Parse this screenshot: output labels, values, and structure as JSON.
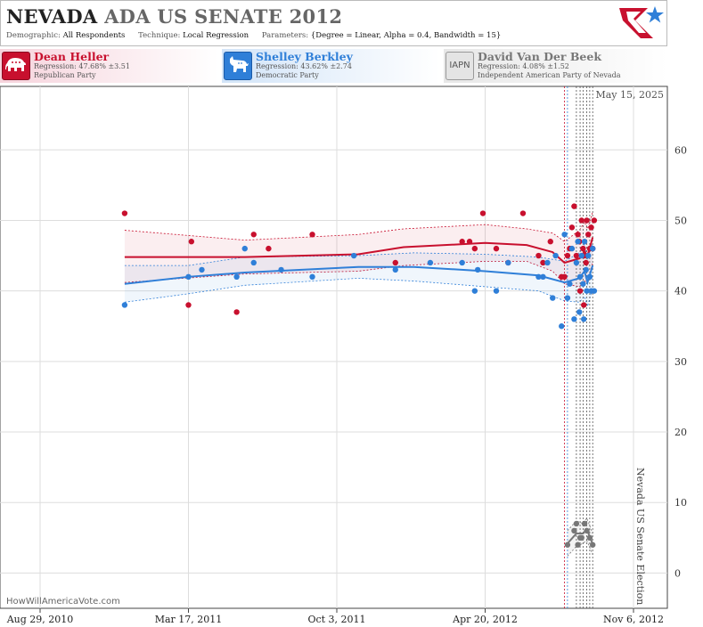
{
  "header": {
    "state": "NEVADA",
    "race": "ADA US SENATE 2012",
    "demographic_label": "Demographic:",
    "demographic_value": "All Respondents",
    "technique_label": "Technique:",
    "technique_value": "Local Regression",
    "parameters_label": "Parameters:",
    "parameters_value": "{Degree = Linear, Alpha = 0.4, Bandwidth = 15}"
  },
  "candidates": [
    {
      "name": "Dean Heller",
      "regression": "Regression: 47.68% ±3.51",
      "party": "Republican Party",
      "color": "#c8102e",
      "icon": "elephant-icon"
    },
    {
      "name": "Shelley Berkley",
      "regression": "Regression: 43.62% ±2.74",
      "party": "Democratic Party",
      "color": "#2f7fd8",
      "icon": "donkey-icon"
    },
    {
      "name": "David Van Der Beek",
      "badge": "IAPN",
      "regression": "Regression: 4.08% ±1.52",
      "party": "Independent American Party  of Nevada",
      "color": "#777777",
      "icon": "iapn-badge"
    }
  ],
  "annotations": {
    "current_date": "May 15, 2025",
    "election_label": "Nevada US Senate Election",
    "watermark": "HowWillAmericaVote.com"
  },
  "chart_data": {
    "type": "scatter",
    "title": "NEVADA ADA US SENATE 2012",
    "x_ticks": [
      "Aug 29, 2010",
      "Mar 17, 2011",
      "Oct 3, 2011",
      "Apr 20, 2012",
      "Nov 6, 2012"
    ],
    "x_range": [
      "2010-08-29",
      "2012-11-06"
    ],
    "y_ticks": [
      0,
      10,
      20,
      30,
      40,
      50,
      60
    ],
    "ylim": [
      -5,
      69
    ],
    "grid": true,
    "series": [
      {
        "name": "Dean Heller",
        "color": "#c8102e",
        "points": [
          [
            "2010-12-21",
            51
          ],
          [
            "2011-03-17",
            38
          ],
          [
            "2011-03-21",
            47
          ],
          [
            "2011-05-21",
            37
          ],
          [
            "2011-06-13",
            48
          ],
          [
            "2011-07-03",
            46
          ],
          [
            "2011-08-31",
            48
          ],
          [
            "2011-12-21",
            44
          ],
          [
            "2012-03-20",
            47
          ],
          [
            "2012-03-30",
            47
          ],
          [
            "2012-04-06",
            46
          ],
          [
            "2012-04-17",
            51
          ],
          [
            "2012-05-05",
            46
          ],
          [
            "2012-05-21",
            44
          ],
          [
            "2012-06-10",
            51
          ],
          [
            "2012-07-01",
            45
          ],
          [
            "2012-07-07",
            44
          ],
          [
            "2012-07-17",
            47
          ],
          [
            "2012-08-01",
            42
          ],
          [
            "2012-08-05",
            42
          ],
          [
            "2012-08-09",
            45
          ],
          [
            "2012-08-12",
            46
          ],
          [
            "2012-08-15",
            49
          ],
          [
            "2012-08-18",
            52
          ],
          [
            "2012-08-21",
            45
          ],
          [
            "2012-08-23",
            48
          ],
          [
            "2012-08-25",
            47
          ],
          [
            "2012-08-26",
            40
          ],
          [
            "2012-08-28",
            50
          ],
          [
            "2012-08-30",
            46
          ],
          [
            "2012-08-31",
            38
          ],
          [
            "2012-09-01",
            45
          ],
          [
            "2012-09-03",
            44
          ],
          [
            "2012-09-04",
            50
          ],
          [
            "2012-09-06",
            48
          ],
          [
            "2012-09-08",
            46
          ],
          [
            "2012-09-10",
            49
          ],
          [
            "2012-09-12",
            46
          ],
          [
            "2012-09-14",
            50
          ]
        ],
        "trend": [
          [
            "2010-12-21",
            44.8
          ],
          [
            "2011-06-01",
            44.8
          ],
          [
            "2011-11-01",
            45.2
          ],
          [
            "2012-01-01",
            46.2
          ],
          [
            "2012-04-20",
            46.8
          ],
          [
            "2012-06-15",
            46.5
          ],
          [
            "2012-07-20",
            45.5
          ],
          [
            "2012-08-05",
            44.0
          ],
          [
            "2012-08-25",
            44.6
          ],
          [
            "2012-09-01",
            45.6
          ],
          [
            "2012-09-05",
            45.0
          ],
          [
            "2012-09-12",
            47.6
          ]
        ],
        "band_upper": [
          [
            "2010-12-21",
            48.6
          ],
          [
            "2011-06-01",
            47.2
          ],
          [
            "2011-11-01",
            48.0
          ],
          [
            "2012-01-01",
            48.8
          ],
          [
            "2012-04-20",
            49.4
          ],
          [
            "2012-06-15",
            48.8
          ],
          [
            "2012-07-20",
            48.2
          ],
          [
            "2012-08-05",
            47.0
          ],
          [
            "2012-08-25",
            48.6
          ],
          [
            "2012-09-01",
            49.8
          ],
          [
            "2012-09-05",
            48.8
          ],
          [
            "2012-09-12",
            51.2
          ]
        ],
        "band_lower": [
          [
            "2010-12-21",
            41.2
          ],
          [
            "2011-06-01",
            42.4
          ],
          [
            "2011-11-01",
            42.8
          ],
          [
            "2012-01-01",
            43.6
          ],
          [
            "2012-04-20",
            44.2
          ],
          [
            "2012-06-15",
            44.2
          ],
          [
            "2012-07-20",
            42.8
          ],
          [
            "2012-08-05",
            41.0
          ],
          [
            "2012-08-25",
            40.6
          ],
          [
            "2012-09-01",
            41.4
          ],
          [
            "2012-09-05",
            41.2
          ],
          [
            "2012-09-12",
            44.0
          ]
        ]
      },
      {
        "name": "Shelley Berkley",
        "color": "#2f7fd8",
        "points": [
          [
            "2010-12-21",
            38
          ],
          [
            "2011-03-17",
            42
          ],
          [
            "2011-04-04",
            43
          ],
          [
            "2011-05-21",
            42
          ],
          [
            "2011-06-01",
            46
          ],
          [
            "2011-06-13",
            44
          ],
          [
            "2011-07-20",
            43
          ],
          [
            "2011-08-31",
            42
          ],
          [
            "2011-10-26",
            45
          ],
          [
            "2011-12-21",
            43
          ],
          [
            "2012-02-06",
            44
          ],
          [
            "2012-03-20",
            44
          ],
          [
            "2012-04-06",
            40
          ],
          [
            "2012-04-10",
            43
          ],
          [
            "2012-05-05",
            40
          ],
          [
            "2012-05-21",
            44
          ],
          [
            "2012-07-01",
            42
          ],
          [
            "2012-07-07",
            42
          ],
          [
            "2012-07-13",
            44
          ],
          [
            "2012-07-20",
            39
          ],
          [
            "2012-07-24",
            45
          ],
          [
            "2012-08-01",
            35
          ],
          [
            "2012-08-05",
            48
          ],
          [
            "2012-08-09",
            39
          ],
          [
            "2012-08-12",
            41
          ],
          [
            "2012-08-15",
            46
          ],
          [
            "2012-08-18",
            36
          ],
          [
            "2012-08-21",
            44
          ],
          [
            "2012-08-23",
            47
          ],
          [
            "2012-08-25",
            37
          ],
          [
            "2012-08-26",
            42
          ],
          [
            "2012-08-28",
            45
          ],
          [
            "2012-08-30",
            41
          ],
          [
            "2012-08-31",
            36
          ],
          [
            "2012-09-01",
            47
          ],
          [
            "2012-09-03",
            43
          ],
          [
            "2012-09-04",
            40
          ],
          [
            "2012-09-06",
            45
          ],
          [
            "2012-09-08",
            42
          ],
          [
            "2012-09-10",
            40
          ],
          [
            "2012-09-12",
            46
          ],
          [
            "2012-09-14",
            40
          ]
        ],
        "trend": [
          [
            "2010-12-21",
            41.0
          ],
          [
            "2011-03-17",
            42.0
          ],
          [
            "2011-06-01",
            42.6
          ],
          [
            "2011-11-01",
            43.4
          ],
          [
            "2012-01-15",
            43.4
          ],
          [
            "2012-04-20",
            42.8
          ],
          [
            "2012-07-01",
            42.2
          ],
          [
            "2012-08-05",
            41.2
          ],
          [
            "2012-08-25",
            41.8
          ],
          [
            "2012-09-01",
            42.8
          ],
          [
            "2012-09-05",
            41.2
          ],
          [
            "2012-09-12",
            43.6
          ]
        ],
        "band_upper": [
          [
            "2010-12-21",
            43.6
          ],
          [
            "2011-03-17",
            43.6
          ],
          [
            "2011-06-01",
            44.8
          ],
          [
            "2011-11-01",
            45.0
          ],
          [
            "2012-01-15",
            45.4
          ],
          [
            "2012-04-20",
            45.2
          ],
          [
            "2012-07-01",
            44.8
          ],
          [
            "2012-08-05",
            44.2
          ],
          [
            "2012-08-25",
            45.4
          ],
          [
            "2012-09-01",
            46.6
          ],
          [
            "2012-09-05",
            44.6
          ],
          [
            "2012-09-12",
            46.8
          ]
        ],
        "band_lower": [
          [
            "2010-12-21",
            38.4
          ],
          [
            "2011-03-17",
            39.6
          ],
          [
            "2011-06-01",
            40.8
          ],
          [
            "2011-11-01",
            41.8
          ],
          [
            "2012-01-15",
            41.4
          ],
          [
            "2012-04-20",
            40.6
          ],
          [
            "2012-07-01",
            40.0
          ],
          [
            "2012-08-05",
            38.6
          ],
          [
            "2012-08-25",
            38.4
          ],
          [
            "2012-09-01",
            39.2
          ],
          [
            "2012-09-05",
            37.8
          ],
          [
            "2012-09-12",
            40.4
          ]
        ]
      },
      {
        "name": "David Van Der Beek",
        "color": "#777777",
        "points": [
          [
            "2012-08-09",
            4
          ],
          [
            "2012-08-18",
            6
          ],
          [
            "2012-08-21",
            7
          ],
          [
            "2012-08-23",
            4
          ],
          [
            "2012-08-26",
            5
          ],
          [
            "2012-08-28",
            5
          ],
          [
            "2012-09-01",
            7
          ],
          [
            "2012-09-04",
            6
          ],
          [
            "2012-09-08",
            5
          ],
          [
            "2012-09-12",
            4
          ]
        ],
        "trend": [
          [
            "2012-08-09",
            4.2
          ],
          [
            "2012-08-21",
            5.6
          ],
          [
            "2012-08-30",
            5.6
          ],
          [
            "2012-09-04",
            6.2
          ],
          [
            "2012-09-12",
            4.1
          ]
        ],
        "band_upper": [
          [
            "2012-08-09",
            6.0
          ],
          [
            "2012-08-21",
            7.4
          ],
          [
            "2012-08-30",
            7.0
          ],
          [
            "2012-09-04",
            7.8
          ],
          [
            "2012-09-12",
            5.6
          ]
        ],
        "band_lower": [
          [
            "2012-08-09",
            2.4
          ],
          [
            "2012-08-21",
            3.8
          ],
          [
            "2012-08-30",
            4.2
          ],
          [
            "2012-09-04",
            4.6
          ],
          [
            "2012-09-12",
            2.6
          ]
        ]
      }
    ],
    "poll_dates": [
      "2012-08-05",
      "2012-08-09",
      "2012-08-21",
      "2012-08-26",
      "2012-08-30",
      "2012-09-04",
      "2012-09-08",
      "2012-09-12"
    ]
  }
}
